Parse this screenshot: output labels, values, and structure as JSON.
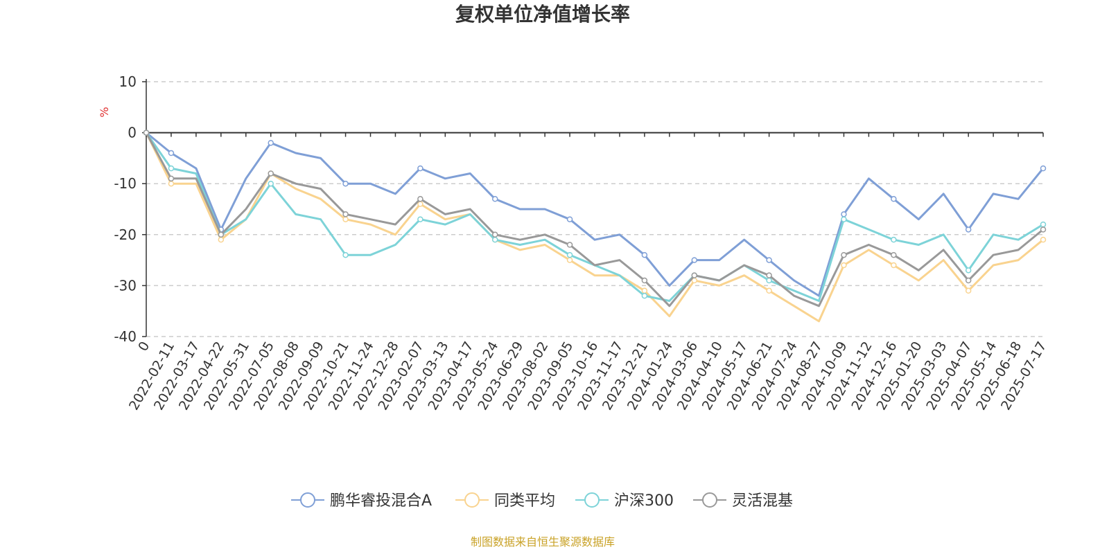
{
  "chart_data": {
    "type": "line",
    "title": "复权单位净值增长率",
    "ylabel": "%",
    "ylim": [
      -40,
      10
    ],
    "yticks": [
      10,
      0,
      -10,
      -20,
      -30,
      -40
    ],
    "grid": true,
    "legend_position": "bottom",
    "source": "制图数据来自恒生聚源数据库",
    "x": [
      "0",
      "2022-02-11",
      "2022-03-17",
      "2022-04-22",
      "2022-05-31",
      "2022-07-05",
      "2022-08-08",
      "2022-09-09",
      "2022-10-21",
      "2022-11-24",
      "2022-12-28",
      "2023-02-07",
      "2023-03-13",
      "2023-04-17",
      "2023-05-24",
      "2023-06-29",
      "2023-08-02",
      "2023-09-05",
      "2023-10-16",
      "2023-11-17",
      "2023-12-21",
      "2024-01-24",
      "2024-03-06",
      "2024-04-10",
      "2024-05-17",
      "2024-06-21",
      "2024-07-24",
      "2024-08-27",
      "2024-10-09",
      "2024-11-12",
      "2024-12-16",
      "2025-01-20",
      "2025-03-03",
      "2025-04-07",
      "2025-05-14",
      "2025-06-18",
      "2025-07-17"
    ],
    "series": [
      {
        "name": "鹏华睿投混合A",
        "color": "#7f9fd6",
        "values": [
          0,
          -4,
          -7,
          -19,
          -9,
          -2,
          -4,
          -5,
          -10,
          -10,
          -12,
          -7,
          -9,
          -8,
          -13,
          -15,
          -15,
          -17,
          -21,
          -20,
          -24,
          -30,
          -25,
          -25,
          -21,
          -25,
          -29,
          -32,
          -16,
          -9,
          -13,
          -17,
          -12,
          -19,
          -12,
          -13,
          -7
        ]
      },
      {
        "name": "同类平均",
        "color": "#f9d38f",
        "values": [
          0,
          -10,
          -10,
          -21,
          -17,
          -8,
          -11,
          -13,
          -17,
          -18,
          -20,
          -14,
          -17,
          -16,
          -21,
          -23,
          -22,
          -25,
          -28,
          -28,
          -31,
          -36,
          -29,
          -30,
          -28,
          -31,
          -34,
          -37,
          -26,
          -23,
          -26,
          -29,
          -25,
          -31,
          -26,
          -25,
          -21
        ]
      },
      {
        "name": "沪深300",
        "color": "#7dd3d8",
        "values": [
          0,
          -7,
          -8,
          -20,
          -17,
          -10,
          -16,
          -17,
          -24,
          -24,
          -22,
          -17,
          -18,
          -16,
          -21,
          -22,
          -21,
          -24,
          -26,
          -28,
          -32,
          -33,
          -28,
          -29,
          -26,
          -29,
          -31,
          -33,
          -17,
          -19,
          -21,
          -22,
          -20,
          -27,
          -20,
          -21,
          -18
        ]
      },
      {
        "name": "灵活混基",
        "color": "#999999",
        "values": [
          0,
          -9,
          -9,
          -20,
          -15,
          -8,
          -10,
          -11,
          -16,
          -17,
          -18,
          -13,
          -16,
          -15,
          -20,
          -21,
          -20,
          -22,
          -26,
          -25,
          -29,
          -34,
          -28,
          -29,
          -26,
          -28,
          -32,
          -34,
          -24,
          -22,
          -24,
          -27,
          -23,
          -29,
          -24,
          -23,
          -19
        ]
      }
    ]
  }
}
